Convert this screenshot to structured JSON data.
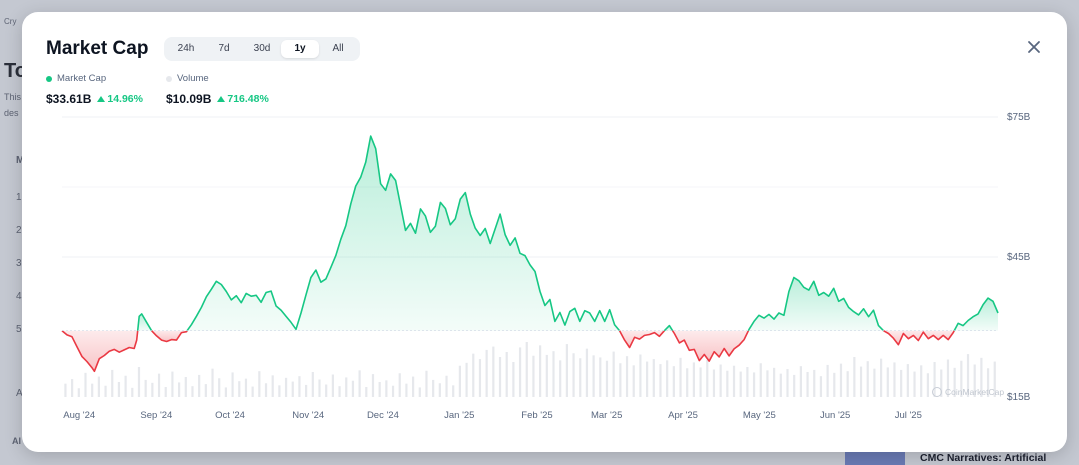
{
  "background": {
    "left_texts": [
      "Cry",
      "To",
      "This",
      "des",
      "M",
      "1",
      "2",
      "3",
      "4",
      "5",
      "A",
      "Al"
    ],
    "bottom_right_text": "CMC Narratives: Artificial"
  },
  "modal": {
    "title": "Market Cap",
    "tabs": [
      {
        "label": "24h",
        "active": false
      },
      {
        "label": "7d",
        "active": false
      },
      {
        "label": "30d",
        "active": false
      },
      {
        "label": "1y",
        "active": true
      },
      {
        "label": "All",
        "active": false
      }
    ],
    "close_icon": "close-icon"
  },
  "legend": {
    "market_cap": {
      "label": "Market Cap",
      "value": "$33.61B",
      "change": "14.96%",
      "color": "#16c784"
    },
    "volume": {
      "label": "Volume",
      "value": "$10.09B",
      "change": "716.48%",
      "color": "#e6e8ec"
    }
  },
  "colors": {
    "up": "#16c784",
    "down": "#ea3943",
    "up_fill": "#16c784",
    "down_fill": "#ea3943",
    "volume": "#e6e8ec"
  },
  "chart_data": {
    "type": "area",
    "y_ticks": [
      "$75B",
      "$45B",
      "$15B"
    ],
    "y_tick_values": [
      75,
      45,
      15
    ],
    "ylim": [
      15,
      75
    ],
    "baseline": 29.2,
    "x_ticks": [
      "Aug '24",
      "Sep '24",
      "Oct '24",
      "Nov '24",
      "Dec '24",
      "Jan '25",
      "Feb '25",
      "Mar '25",
      "Apr '25",
      "May '25",
      "Jun '25",
      "Jul '25"
    ],
    "x_tick_positions": [
      0.5,
      31.5,
      61.5,
      92.5,
      122.5,
      153.5,
      184.5,
      212.5,
      243.5,
      273.5,
      304.5,
      334.5
    ],
    "watermark": "CoinMarketCap",
    "series": [
      {
        "name": "Market Cap",
        "points": [
          [
            0,
            29.2
          ],
          [
            2,
            28.3
          ],
          [
            4,
            27.9
          ],
          [
            6,
            25.8
          ],
          [
            8,
            23.7
          ],
          [
            10,
            22.6
          ],
          [
            12,
            21.3
          ],
          [
            13,
            20.5
          ],
          [
            15,
            23.2
          ],
          [
            17,
            23.9
          ],
          [
            19,
            24.8
          ],
          [
            21,
            25.2
          ],
          [
            23,
            24.6
          ],
          [
            25,
            25.1
          ],
          [
            27,
            25.6
          ],
          [
            29,
            25.4
          ],
          [
            30,
            27.2
          ],
          [
            31,
            32.3
          ],
          [
            32,
            32.8
          ],
          [
            34,
            31.0
          ],
          [
            36,
            29.2
          ],
          [
            38,
            28.1
          ],
          [
            40,
            27.2
          ],
          [
            42,
            26.9
          ],
          [
            44,
            27.3
          ],
          [
            46,
            27.2
          ],
          [
            48,
            28.8
          ],
          [
            50,
            29.0
          ],
          [
            52,
            30.5
          ],
          [
            54,
            32.3
          ],
          [
            56,
            34.2
          ],
          [
            58,
            36.5
          ],
          [
            60,
            38.1
          ],
          [
            62,
            39.8
          ],
          [
            64,
            39.1
          ],
          [
            66,
            37.6
          ],
          [
            68,
            35.8
          ],
          [
            70,
            36.7
          ],
          [
            72,
            35.2
          ],
          [
            74,
            37.2
          ],
          [
            76,
            36.6
          ],
          [
            78,
            36.8
          ],
          [
            80,
            35.3
          ],
          [
            82,
            37.4
          ],
          [
            84,
            37.7
          ],
          [
            86,
            34.5
          ],
          [
            88,
            33.6
          ],
          [
            90,
            32.3
          ],
          [
            92,
            31.0
          ],
          [
            94,
            29.5
          ],
          [
            96,
            33.0
          ],
          [
            98,
            36.9
          ],
          [
            100,
            40.6
          ],
          [
            102,
            42.2
          ],
          [
            104,
            39.6
          ],
          [
            106,
            40.3
          ],
          [
            108,
            42.8
          ],
          [
            110,
            45.3
          ],
          [
            112,
            48.8
          ],
          [
            114,
            51.7
          ],
          [
            116,
            56.4
          ],
          [
            118,
            60.2
          ],
          [
            120,
            62.1
          ],
          [
            122,
            65.3
          ],
          [
            124,
            70.9
          ],
          [
            126,
            68.2
          ],
          [
            128,
            60.7
          ],
          [
            130,
            59.3
          ],
          [
            132,
            62.8
          ],
          [
            134,
            61.4
          ],
          [
            136,
            56.0
          ],
          [
            138,
            50.7
          ],
          [
            140,
            52.2
          ],
          [
            142,
            50.1
          ],
          [
            144,
            55.3
          ],
          [
            146,
            53.8
          ],
          [
            148,
            50.3
          ],
          [
            150,
            51.6
          ],
          [
            152,
            56.7
          ],
          [
            154,
            55.4
          ],
          [
            156,
            51.9
          ],
          [
            158,
            53.2
          ],
          [
            160,
            57.4
          ],
          [
            162,
            58.8
          ],
          [
            164,
            54.2
          ],
          [
            166,
            51.2
          ],
          [
            168,
            49.6
          ],
          [
            170,
            51.1
          ],
          [
            172,
            47.9
          ],
          [
            174,
            51.0
          ],
          [
            176,
            54.2
          ],
          [
            178,
            49.8
          ],
          [
            180,
            47.5
          ],
          [
            182,
            49.1
          ],
          [
            184,
            45.8
          ],
          [
            186,
            45.3
          ],
          [
            188,
            43.3
          ],
          [
            190,
            41.9
          ],
          [
            192,
            37.6
          ],
          [
            194,
            34.6
          ],
          [
            196,
            35.9
          ],
          [
            198,
            31.2
          ],
          [
            200,
            33.1
          ],
          [
            202,
            30.4
          ],
          [
            204,
            33.3
          ],
          [
            206,
            34.0
          ],
          [
            208,
            31.2
          ],
          [
            210,
            33.5
          ],
          [
            212,
            33.0
          ],
          [
            214,
            31.2
          ],
          [
            216,
            33.5
          ],
          [
            218,
            31.2
          ],
          [
            220,
            33.7
          ],
          [
            222,
            30.5
          ],
          [
            224,
            29.2
          ],
          [
            226,
            27.2
          ],
          [
            228,
            25.6
          ],
          [
            230,
            27.8
          ],
          [
            232,
            27.4
          ],
          [
            234,
            28.2
          ],
          [
            236,
            28.4
          ],
          [
            238,
            28.8
          ],
          [
            240,
            28.0
          ],
          [
            242,
            29.2
          ],
          [
            244,
            30.3
          ],
          [
            246,
            28.6
          ],
          [
            248,
            26.6
          ],
          [
            250,
            27.2
          ],
          [
            252,
            25.0
          ],
          [
            254,
            25.2
          ],
          [
            256,
            22.8
          ],
          [
            258,
            24.1
          ],
          [
            260,
            22.7
          ],
          [
            262,
            24.7
          ],
          [
            264,
            23.6
          ],
          [
            266,
            25.4
          ],
          [
            268,
            23.8
          ],
          [
            270,
            25.3
          ],
          [
            272,
            26.1
          ],
          [
            274,
            27.3
          ],
          [
            276,
            29.5
          ],
          [
            278,
            31.2
          ],
          [
            280,
            32.5
          ],
          [
            282,
            31.9
          ],
          [
            284,
            32.7
          ],
          [
            286,
            31.7
          ],
          [
            288,
            33.0
          ],
          [
            290,
            32.5
          ],
          [
            292,
            37.6
          ],
          [
            294,
            40.6
          ],
          [
            296,
            39.9
          ],
          [
            298,
            38.5
          ],
          [
            300,
            37.9
          ],
          [
            302,
            39.8
          ],
          [
            304,
            36.8
          ],
          [
            306,
            37.4
          ],
          [
            308,
            36.6
          ],
          [
            310,
            38.3
          ],
          [
            312,
            35.5
          ],
          [
            314,
            36.1
          ],
          [
            316,
            34.2
          ],
          [
            318,
            33.3
          ],
          [
            320,
            32.6
          ],
          [
            322,
            33.9
          ],
          [
            324,
            32.2
          ],
          [
            326,
            33.6
          ],
          [
            328,
            30.3
          ],
          [
            330,
            29.2
          ],
          [
            332,
            28.6
          ],
          [
            334,
            27.6
          ],
          [
            336,
            26.2
          ],
          [
            338,
            28.6
          ],
          [
            340,
            27.5
          ],
          [
            342,
            28.2
          ],
          [
            344,
            27.1
          ],
          [
            346,
            28.9
          ],
          [
            348,
            27.5
          ],
          [
            350,
            28.2
          ],
          [
            352,
            27.3
          ],
          [
            354,
            28.2
          ],
          [
            356,
            27.3
          ],
          [
            358,
            28.8
          ],
          [
            360,
            30.8
          ],
          [
            362,
            30.3
          ],
          [
            364,
            31.4
          ],
          [
            366,
            32.2
          ],
          [
            368,
            32.8
          ],
          [
            370,
            34.8
          ],
          [
            372,
            36.2
          ],
          [
            374,
            35.5
          ],
          [
            376,
            33.0
          ]
        ]
      },
      {
        "name": "Volume",
        "values": [
          3.2,
          4.3,
          2.1,
          5.8,
          3.2,
          4.9,
          2.7,
          6.5,
          3.6,
          5.1,
          2.2,
          7.2,
          4.1,
          3.4,
          5.6,
          2.4,
          6.1,
          3.5,
          4.8,
          2.6,
          5.3,
          3.1,
          6.8,
          4.5,
          2.3,
          5.9,
          3.8,
          4.4,
          2.5,
          6.2,
          3.3,
          5.2,
          2.8,
          4.6,
          3.7,
          5.0,
          2.9,
          6.0,
          4.2,
          3.0,
          5.4,
          2.6,
          4.7,
          3.9,
          6.4,
          2.4,
          5.5,
          3.6,
          4.0,
          2.7,
          5.7,
          3.2,
          4.9,
          2.3,
          6.3,
          4.1,
          3.3,
          5.1,
          2.8,
          7.5,
          8.2,
          10.4,
          9.1,
          11.3,
          12.1,
          9.6,
          10.8,
          8.4,
          11.9,
          13.2,
          9.9,
          12.4,
          10.1,
          11.0,
          8.8,
          12.7,
          10.5,
          9.3,
          11.6,
          10.0,
          9.5,
          8.7,
          10.9,
          8.1,
          9.8,
          7.6,
          10.2,
          8.5,
          9.1,
          7.9,
          8.8,
          7.4,
          9.4,
          6.9,
          8.3,
          7.1,
          8.9,
          6.6,
          7.8,
          6.3,
          7.5,
          6.1,
          7.2,
          5.9,
          8.1,
          6.4,
          7.0,
          5.6,
          6.7,
          5.3,
          7.4,
          6.0,
          6.5,
          5.0,
          7.7,
          5.8,
          8.0,
          6.2,
          9.6,
          7.3,
          8.6,
          6.8,
          9.2,
          7.1,
          8.3,
          6.5,
          7.9,
          6.1,
          7.6,
          5.7,
          8.4,
          6.6,
          9.0,
          7.0,
          8.7,
          10.3,
          7.8,
          9.4,
          6.9,
          8.5
        ]
      }
    ]
  }
}
